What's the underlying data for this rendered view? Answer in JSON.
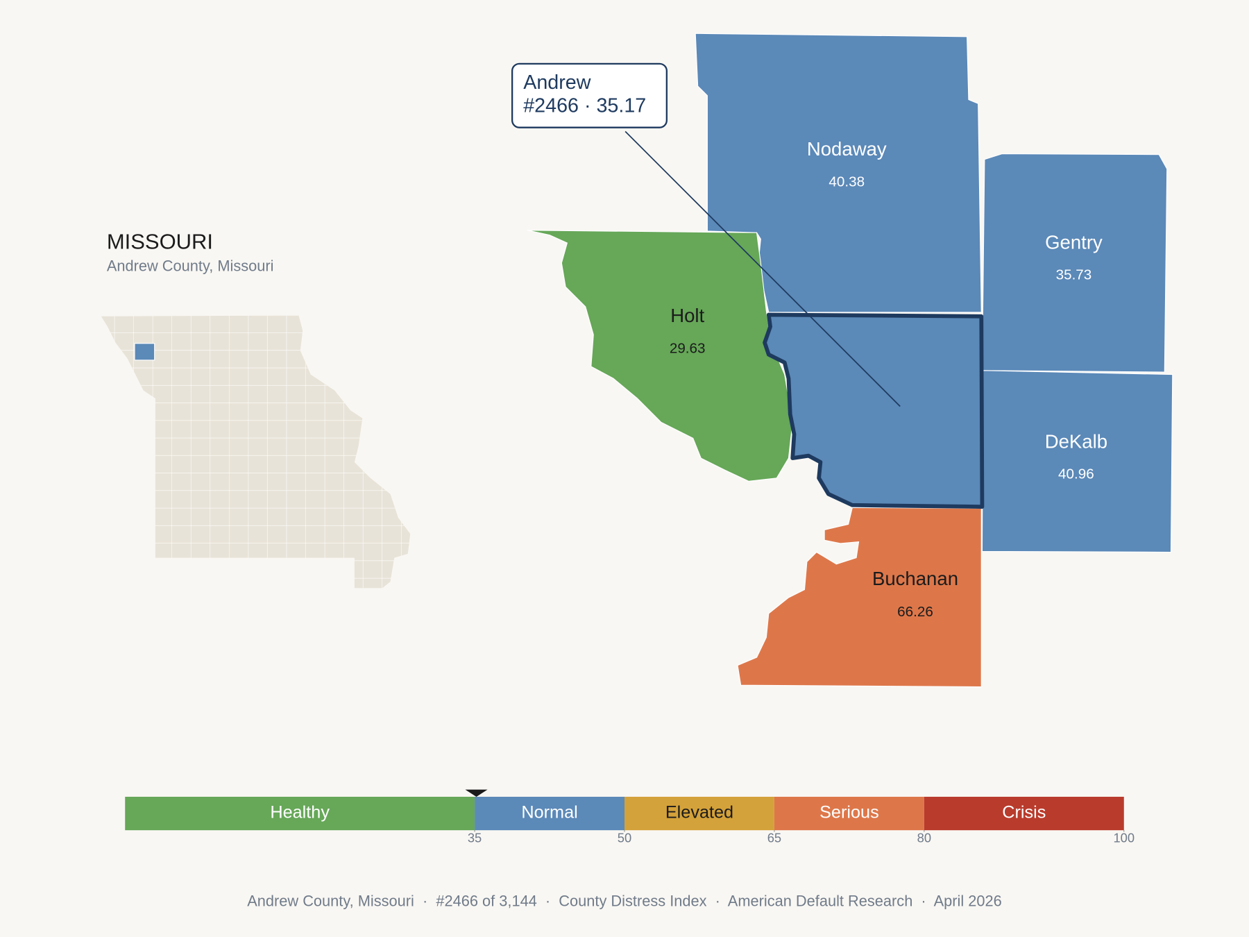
{
  "header": {
    "title": "MISSOURI",
    "subtitle": "Andrew County, Missouri"
  },
  "callout": {
    "name": "Andrew",
    "detail": "#2466 · 35.17",
    "color": "#5b89b8",
    "outline": "#1e3a5f"
  },
  "counties": [
    {
      "name": "Nodaway",
      "value": 40.38,
      "color": "#5b89b8"
    },
    {
      "name": "Gentry",
      "value": 35.73,
      "color": "#5b89b8"
    },
    {
      "name": "Holt",
      "value": 29.63,
      "color": "#66a758"
    },
    {
      "name": "DeKalb",
      "value": 40.96,
      "color": "#5b89b8"
    },
    {
      "name": "Buchanan",
      "value": 66.26,
      "color": "#dd774a"
    }
  ],
  "scale": {
    "lim": [
      0,
      100
    ],
    "ticks": [
      35,
      50,
      65,
      80,
      100
    ],
    "marker": 35.17,
    "bands": [
      {
        "label": "Healthy",
        "color": "#66a758"
      },
      {
        "label": "Normal",
        "color": "#5b89b8"
      },
      {
        "label": "Elevated",
        "color": "#d4a23a"
      },
      {
        "label": "Serious",
        "color": "#dd774a"
      },
      {
        "label": "Crisis",
        "color": "#b93b2c"
      }
    ]
  },
  "footer": "Andrew County, Missouri  ·  #2466 of 3,144  ·  County Distress Index  ·  American Default Research  ·  April 2026"
}
